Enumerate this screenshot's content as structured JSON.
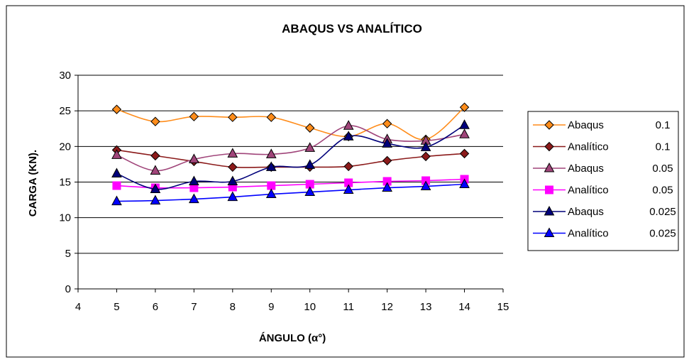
{
  "chart_data": {
    "type": "line",
    "title": "ABAQUS VS ANALÍTICO",
    "xlabel": "ÁNGULO (α°)",
    "ylabel": "CARGA (KN).",
    "xlim": [
      4,
      15
    ],
    "ylim": [
      0,
      30
    ],
    "xticks": [
      "4",
      "5",
      "6",
      "7",
      "8",
      "9",
      "10",
      "11",
      "12",
      "13",
      "14",
      "15"
    ],
    "yticks": [
      "0",
      "5",
      "10",
      "15",
      "20",
      "25",
      "30"
    ],
    "grid": "horizontal",
    "legend_position": "right",
    "x": [
      5,
      6,
      7,
      8,
      9,
      10,
      11,
      12,
      13,
      14
    ],
    "series": [
      {
        "name": "Abaqus",
        "param": "0.1",
        "color": "#FF8C1A",
        "marker": "diamond",
        "values": [
          25.2,
          23.5,
          24.2,
          24.1,
          24.1,
          22.6,
          21.4,
          23.2,
          21.0,
          25.5
        ]
      },
      {
        "name": "Analítico",
        "param": "0.1",
        "color": "#8B1A1A",
        "marker": "diamond",
        "values": [
          19.5,
          18.7,
          17.9,
          17.1,
          17.1,
          17.1,
          17.2,
          18.0,
          18.6,
          19.0
        ]
      },
      {
        "name": "Abaqus",
        "param": "0.05",
        "color": "#A0457A",
        "marker": "triangle",
        "values": [
          18.8,
          16.6,
          18.2,
          19.0,
          18.9,
          19.8,
          22.9,
          21.0,
          20.8,
          21.7
        ]
      },
      {
        "name": "Analítico",
        "param": "0.05",
        "color": "#FF00FF",
        "marker": "square",
        "values": [
          14.5,
          14.2,
          14.2,
          14.3,
          14.5,
          14.7,
          14.9,
          15.1,
          15.2,
          15.4
        ]
      },
      {
        "name": "Abaqus",
        "param": "0.025",
        "color": "#00007A",
        "marker": "triangle",
        "values": [
          16.2,
          14.0,
          15.1,
          15.1,
          17.1,
          17.4,
          21.4,
          20.4,
          19.9,
          23.0
        ]
      },
      {
        "name": "Analítico",
        "param": "0.025",
        "color": "#0000FF",
        "marker": "triangle",
        "values": [
          12.3,
          12.4,
          12.6,
          12.9,
          13.3,
          13.6,
          13.9,
          14.2,
          14.4,
          14.7
        ]
      }
    ]
  }
}
